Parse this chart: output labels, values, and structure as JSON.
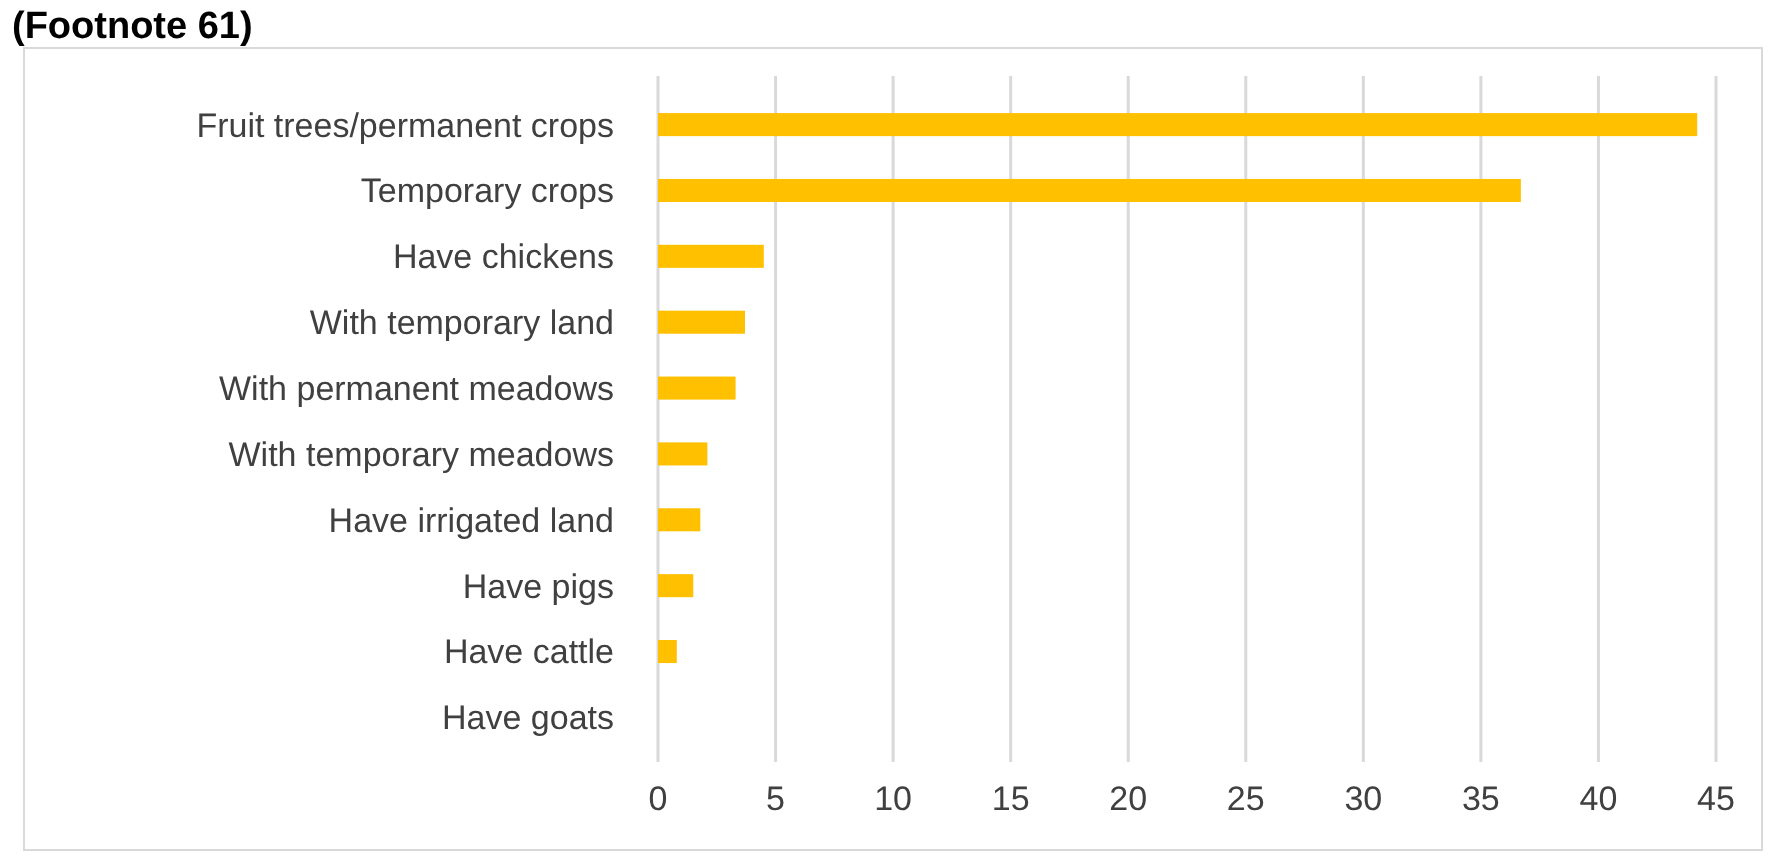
{
  "chart_data": {
    "type": "bar",
    "orientation": "horizontal",
    "title": "(Footnote 61)",
    "categories": [
      "Fruit trees/permanent crops",
      "Temporary crops",
      "Have chickens",
      "With temporary land",
      "With permanent meadows",
      "With temporary meadows",
      "Have irrigated land",
      "Have pigs",
      "Have cattle",
      "Have goats"
    ],
    "values": [
      44.2,
      36.7,
      4.5,
      3.7,
      3.3,
      2.1,
      1.8,
      1.5,
      0.8,
      0
    ],
    "color": "#ffc000",
    "xlim": [
      0,
      45
    ],
    "xticks": [
      0,
      5,
      10,
      15,
      20,
      25,
      30,
      35,
      40,
      45
    ],
    "grid": "x"
  }
}
